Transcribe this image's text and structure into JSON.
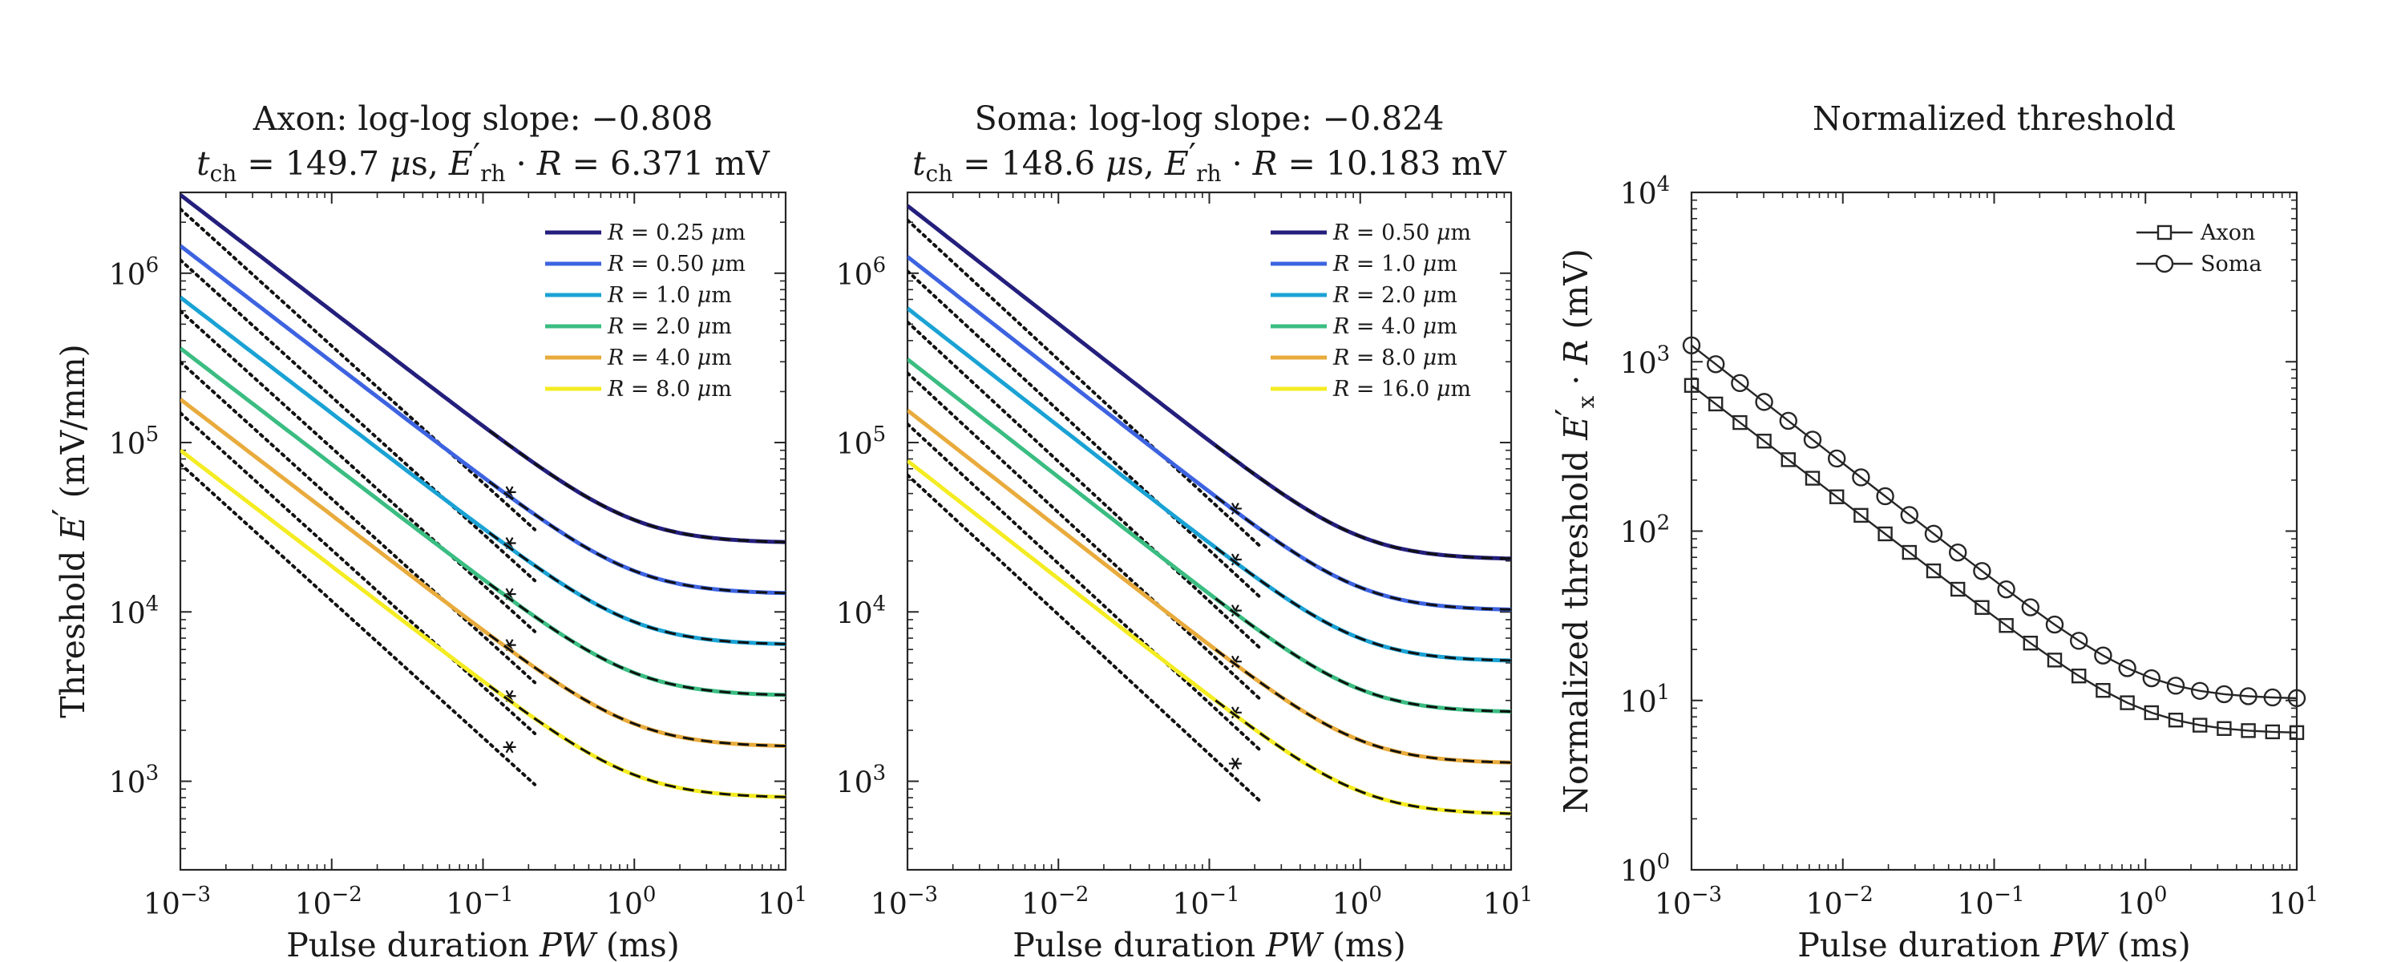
{
  "chart_data": [
    {
      "type": "line",
      "title": "Axon: log-log slope: −0.808",
      "subtitle": "tₕₕ = 149.7 μs, E′ᵣₕ · R = 6.371 mV",
      "subtitle_parts": {
        "tch": "149.7",
        "erhR": "6.371"
      },
      "xlabel": "Pulse duration PW (ms)",
      "ylabel": "Threshold E′ (mV/mm)",
      "xscale": "log",
      "yscale": "log",
      "xlim": [
        0.001,
        10
      ],
      "ylim": [
        300,
        3000000
      ],
      "xticks": [
        0.001,
        0.01,
        0.1,
        1,
        10
      ],
      "xtick_labels": [
        [
          "10",
          "−3"
        ],
        [
          "10",
          "−2"
        ],
        [
          "10",
          "−1"
        ],
        [
          "10",
          "0"
        ],
        [
          "10",
          "1"
        ]
      ],
      "yticks": [
        1000,
        10000,
        100000,
        1000000
      ],
      "ytick_labels": [
        [
          "10",
          "3"
        ],
        [
          "10",
          "4"
        ],
        [
          "10",
          "5"
        ],
        [
          "10",
          "6"
        ]
      ],
      "legend_position": "top-right",
      "rheobase_pw_ms": 1.0,
      "chronaxie_ms": 0.1497,
      "series": [
        {
          "name": "R = 0.25 μm",
          "color": "#241f7c",
          "plateau": 25484,
          "at_1us": 2900000
        },
        {
          "name": "R = 0.50 μm",
          "color": "#3d63e0",
          "plateau": 12742,
          "at_1us": 1450000
        },
        {
          "name": "R = 1.0 μm",
          "color": "#1aa2d4",
          "plateau": 6371,
          "at_1us": 720000
        },
        {
          "name": "R = 2.0 μm",
          "color": "#3bbd82",
          "plateau": 3186,
          "at_1us": 360000
        },
        {
          "name": "R = 4.0 μm",
          "color": "#e8ab3c",
          "plateau": 1593,
          "at_1us": 180000
        },
        {
          "name": "R = 8.0 μm",
          "color": "#f4ec22",
          "plateau": 796,
          "at_1us": 90000
        }
      ],
      "fit_slope": -0.808
    },
    {
      "type": "line",
      "title": "Soma: log-log slope: −0.824",
      "subtitle_parts": {
        "tch": "148.6",
        "erhR": "10.183"
      },
      "xlabel": "Pulse duration PW (ms)",
      "ylabel": "",
      "xscale": "log",
      "yscale": "log",
      "xlim": [
        0.001,
        10
      ],
      "ylim": [
        300,
        3000000
      ],
      "xticks": [
        0.001,
        0.01,
        0.1,
        1,
        10
      ],
      "xtick_labels": [
        [
          "10",
          "−3"
        ],
        [
          "10",
          "−2"
        ],
        [
          "10",
          "−1"
        ],
        [
          "10",
          "0"
        ],
        [
          "10",
          "1"
        ]
      ],
      "yticks": [
        1000,
        10000,
        100000,
        1000000
      ],
      "ytick_labels": [
        [
          "10",
          "3"
        ],
        [
          "10",
          "4"
        ],
        [
          "10",
          "5"
        ],
        [
          "10",
          "6"
        ]
      ],
      "legend_position": "top-right",
      "rheobase_pw_ms": 1.0,
      "chronaxie_ms": 0.1486,
      "series": [
        {
          "name": "R = 0.50 μm",
          "color": "#241f7c",
          "plateau": 20366,
          "at_1us": 2500000
        },
        {
          "name": "R = 1.0 μm",
          "color": "#3d63e0",
          "plateau": 10183,
          "at_1us": 1250000
        },
        {
          "name": "R = 2.0 μm",
          "color": "#1aa2d4",
          "plateau": 5092,
          "at_1us": 620000
        },
        {
          "name": "R = 4.0 μm",
          "color": "#3bbd82",
          "plateau": 2546,
          "at_1us": 310000
        },
        {
          "name": "R = 8.0 μm",
          "color": "#e8ab3c",
          "plateau": 1273,
          "at_1us": 155000
        },
        {
          "name": "R = 16.0 μm",
          "color": "#f4ec22",
          "plateau": 636,
          "at_1us": 78000
        }
      ],
      "fit_slope": -0.824
    },
    {
      "type": "line",
      "title": "Normalized threshold",
      "xlabel": "Pulse duration PW (ms)",
      "ylabel": "Normalized threshold E′ₓ · R (mV)",
      "xscale": "log",
      "yscale": "log",
      "xlim": [
        0.001,
        10
      ],
      "ylim": [
        1,
        10000
      ],
      "xticks": [
        0.001,
        0.01,
        0.1,
        1,
        10
      ],
      "xtick_labels": [
        [
          "10",
          "−3"
        ],
        [
          "10",
          "−2"
        ],
        [
          "10",
          "−1"
        ],
        [
          "10",
          "0"
        ],
        [
          "10",
          "1"
        ]
      ],
      "yticks": [
        1,
        10,
        100,
        1000,
        10000
      ],
      "ytick_labels": [
        [
          "10",
          "0"
        ],
        [
          "10",
          "1"
        ],
        [
          "10",
          "2"
        ],
        [
          "10",
          "3"
        ],
        [
          "10",
          "4"
        ]
      ],
      "legend_position": "top-right",
      "series": [
        {
          "name": "Axon",
          "marker": "square",
          "color": "#262626",
          "plateau": 6.371,
          "at_1us": 725,
          "fit_slope": -0.808
        },
        {
          "name": "Soma",
          "marker": "circle",
          "color": "#262626",
          "plateau": 10.183,
          "at_1us": 1250,
          "fit_slope": -0.824
        }
      ]
    }
  ]
}
